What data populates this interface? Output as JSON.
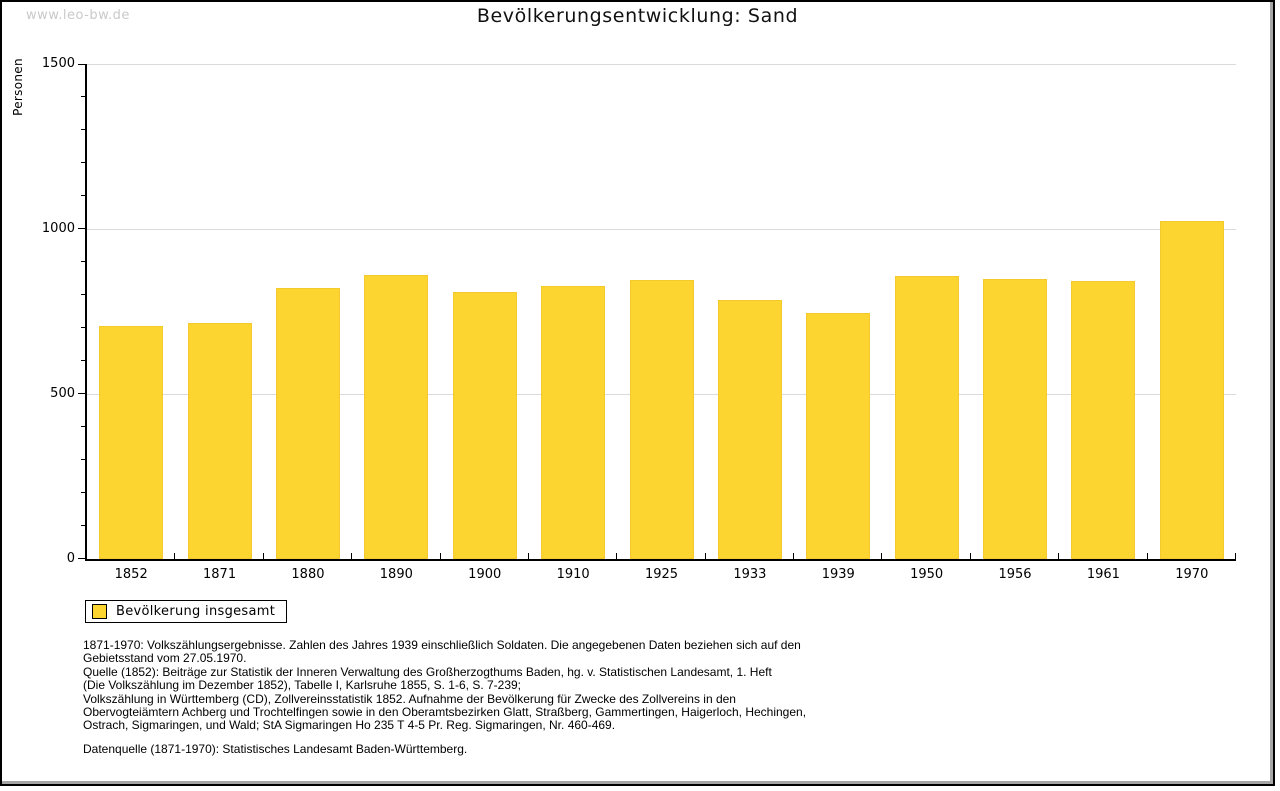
{
  "watermark": "www.leo-bw.de",
  "title": "Bevölkerungsentwicklung: Sand",
  "chart_data": {
    "type": "bar",
    "title": "Bevölkerungsentwicklung: Sand",
    "xlabel": "",
    "ylabel": "Personen",
    "ylim": [
      0,
      1500
    ],
    "ytick_major": [
      0,
      500,
      1000,
      1500
    ],
    "ytick_minor_step": 100,
    "grid": "horizontal lines at major y ticks",
    "legend_position": "bottom-left",
    "categories": [
      "1852",
      "1871",
      "1880",
      "1890",
      "1900",
      "1910",
      "1925",
      "1933",
      "1939",
      "1950",
      "1956",
      "1961",
      "1970"
    ],
    "series": [
      {
        "name": "Bevölkerung insgesamt",
        "color": "#FDD530",
        "values": [
          705,
          715,
          820,
          860,
          810,
          827,
          845,
          785,
          745,
          857,
          850,
          842,
          1025
        ]
      }
    ]
  },
  "legend": {
    "label": "Bevölkerung insgesamt",
    "swatch_color": "#FDD530"
  },
  "footnote_lines": [
    "1871-1970: Volkszählungsergebnisse. Zahlen des Jahres 1939 einschließlich Soldaten. Die angegebenen Daten beziehen sich auf den",
    "Gebietsstand vom 27.05.1970.",
    "Quelle (1852): Beiträge zur Statistik der Inneren Verwaltung des Großherzogthums Baden, hg. v. Statistischen Landesamt, 1. Heft",
    "(Die Volkszählung im Dezember 1852), Tabelle I, Karlsruhe 1855, S. 1-6, S. 7-239;",
    "Volkszählung in Württemberg (CD), Zollvereinsstatistik 1852. Aufnahme der Bevölkerung für Zwecke des Zollvereins in den",
    "Obervogteiämtern Achberg und Trochtelfingen sowie in den Oberamtsbezirken Glatt, Straßberg, Gammertingen, Haigerloch, Hechingen,",
    "Ostrach, Sigmaringen, und Wald; StA Sigmaringen Ho 235 T 4-5 Pr. Reg. Sigmaringen, Nr. 460-469."
  ],
  "datasource": "Datenquelle (1871-1970): Statistisches Landesamt Baden-Württemberg.",
  "colors": {
    "bar_fill": "#FDD530",
    "gridline": "#DADADA",
    "axis": "#000000",
    "watermark": "#C9C9C9",
    "frame_shadow": "#A6A6A6"
  }
}
